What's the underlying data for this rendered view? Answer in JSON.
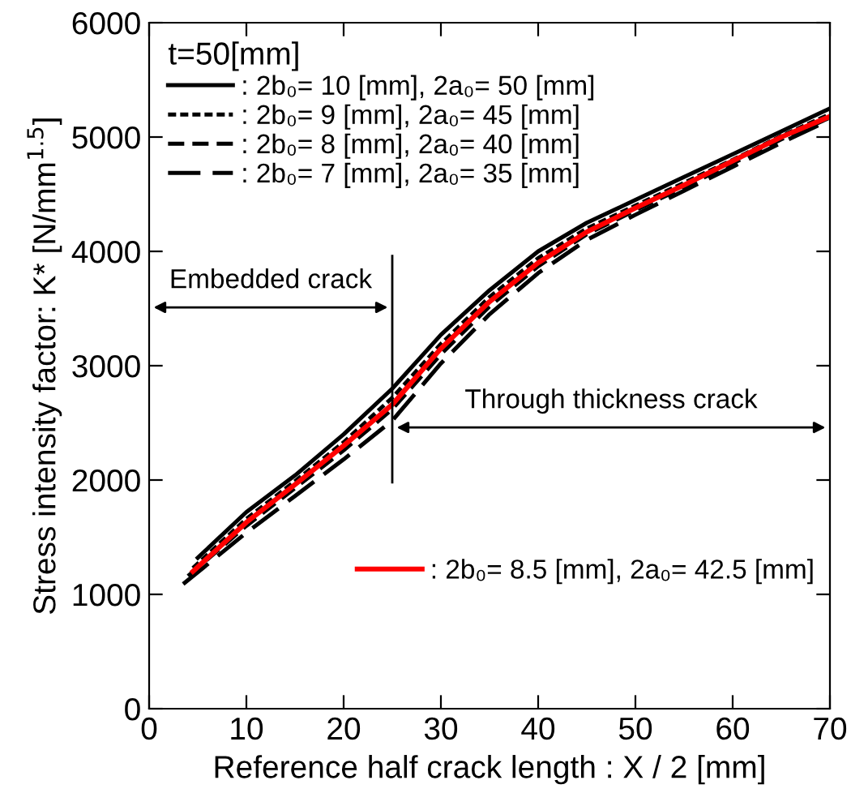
{
  "chart_data": {
    "type": "line",
    "xlabel": "Reference half crack length : X / 2 [mm]",
    "ylabel": "Stress intensity factor: K* [N/mm$^{1.5}$]",
    "legend_title": "t=50[mm]",
    "legend": "top left",
    "xlim": [
      0,
      70
    ],
    "ylim": [
      0,
      6000
    ],
    "xticks": [
      0,
      10,
      20,
      30,
      40,
      50,
      60,
      70
    ],
    "yticks": [
      0,
      1000,
      2000,
      3000,
      4000,
      5000,
      6000
    ],
    "grid": false,
    "marker": "none",
    "series": [
      {
        "name": ": 2b₀= 10 [mm], 2a₀= 50 [mm]",
        "color": "#000000",
        "line_style": "solid",
        "x": [
          5,
          10,
          15,
          20,
          25,
          30,
          35,
          40,
          45,
          50,
          55,
          60,
          65,
          70
        ],
        "values": [
          1320,
          1720,
          2040,
          2400,
          2800,
          3270,
          3660,
          4000,
          4250,
          4450,
          4650,
          4850,
          5050,
          5250
        ]
      },
      {
        "name": ": 2b₀= 9 [mm], 2a₀= 45 [mm]",
        "color": "#000000",
        "line_style": "dotted",
        "x": [
          4.5,
          10,
          15,
          20,
          25,
          30,
          35,
          40,
          45,
          50,
          55,
          60,
          65,
          70
        ],
        "values": [
          1230,
          1660,
          1990,
          2330,
          2720,
          3190,
          3600,
          3940,
          4200,
          4400,
          4600,
          4800,
          5010,
          5200
        ]
      },
      {
        "name": ": 2b₀= 8 [mm], 2a₀= 40 [mm]",
        "color": "#000000",
        "line_style": "dashed",
        "x": [
          4,
          10,
          15,
          20,
          25,
          30,
          35,
          40,
          45,
          50,
          55,
          60,
          65,
          70
        ],
        "values": [
          1160,
          1600,
          1930,
          2260,
          2620,
          3100,
          3520,
          3870,
          4150,
          4360,
          4560,
          4770,
          4980,
          5170
        ]
      },
      {
        "name": ": 2b₀= 7 [mm], 2a₀= 35 [mm]",
        "color": "#000000",
        "line_style": "longdash",
        "x": [
          3.5,
          10,
          15,
          20,
          25,
          30,
          35,
          40,
          45,
          50,
          55,
          60,
          65,
          70
        ],
        "values": [
          1090,
          1540,
          1860,
          2180,
          2520,
          3020,
          3450,
          3810,
          4100,
          4320,
          4530,
          4740,
          4950,
          5150
        ]
      },
      {
        "name": ": 2b₀= 8.5 [mm], 2a₀= 42.5 [mm]",
        "color": "#ff0000",
        "line_style": "solid",
        "x": [
          4.5,
          10,
          15,
          20,
          25,
          30,
          35,
          40,
          45,
          50,
          55,
          60,
          65,
          70
        ],
        "values": [
          1200,
          1630,
          1960,
          2300,
          2660,
          3150,
          3560,
          3900,
          4170,
          4380,
          4580,
          4790,
          5000,
          5180
        ]
      }
    ],
    "ref_lines": [
      {
        "axis": "x",
        "value": 25,
        "color": "#000000"
      }
    ],
    "annotations": [
      "Embedded crack",
      "Through thickness crack"
    ]
  }
}
